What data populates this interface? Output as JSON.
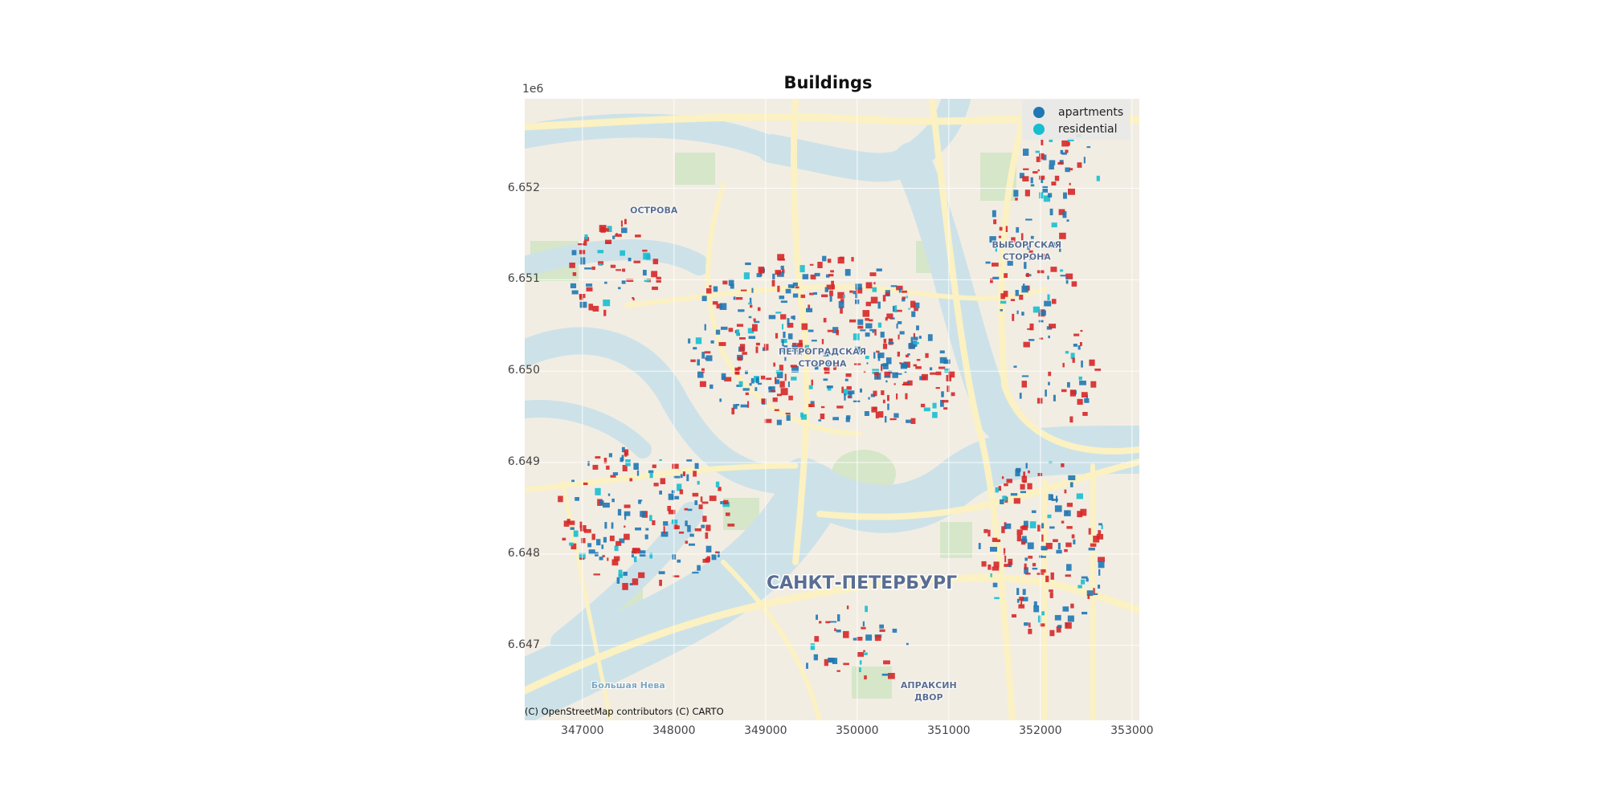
{
  "title": "Buildings",
  "y_exponent": "1e6",
  "attribution": "(C) OpenStreetMap contributors (C) CARTO",
  "axes": {
    "x_ticks": [
      "347000",
      "348000",
      "349000",
      "350000",
      "351000",
      "352000",
      "353000"
    ],
    "y_ticks": [
      "6.647",
      "6.648",
      "6.649",
      "6.650",
      "6.651",
      "6.652"
    ],
    "x_range": [
      346370,
      353080
    ],
    "y_range": [
      6646180,
      6652980
    ],
    "grid": true
  },
  "legend": {
    "placement": "top-right",
    "items": [
      {
        "label": "apartments",
        "color": "#1f77b4"
      },
      {
        "label": "residential",
        "color": "#17becf"
      }
    ]
  },
  "map_labels": [
    {
      "text": "ОСТРОВА",
      "x": 347780,
      "y": 6651730
    },
    {
      "text": "ВЫБОРГСКАЯ",
      "x": 351850,
      "y": 6651350
    },
    {
      "text": "СТОРОНА",
      "x": 351850,
      "y": 6651220
    },
    {
      "text": "ПЕТРОГРАДСКАЯ",
      "x": 349620,
      "y": 6650180
    },
    {
      "text": "СТОРОНА",
      "x": 349620,
      "y": 6650050
    },
    {
      "text": "САНКТ-ПЕТЕРБУРГ",
      "x": 350050,
      "y": 6647620
    },
    {
      "text": "АПРАКСИН",
      "x": 350780,
      "y": 6646530
    },
    {
      "text": "ДВОР",
      "x": 350780,
      "y": 6646400
    },
    {
      "text": "Большая Нева",
      "x": 347500,
      "y": 6646530
    }
  ],
  "colors": {
    "land": "#f2ede3",
    "water": "#cde2e8",
    "park": "#d6e6c8",
    "road": "#fbf1c2",
    "apartments": "#1f77b4",
    "residential": "#17becf",
    "other": "#d62728"
  }
}
